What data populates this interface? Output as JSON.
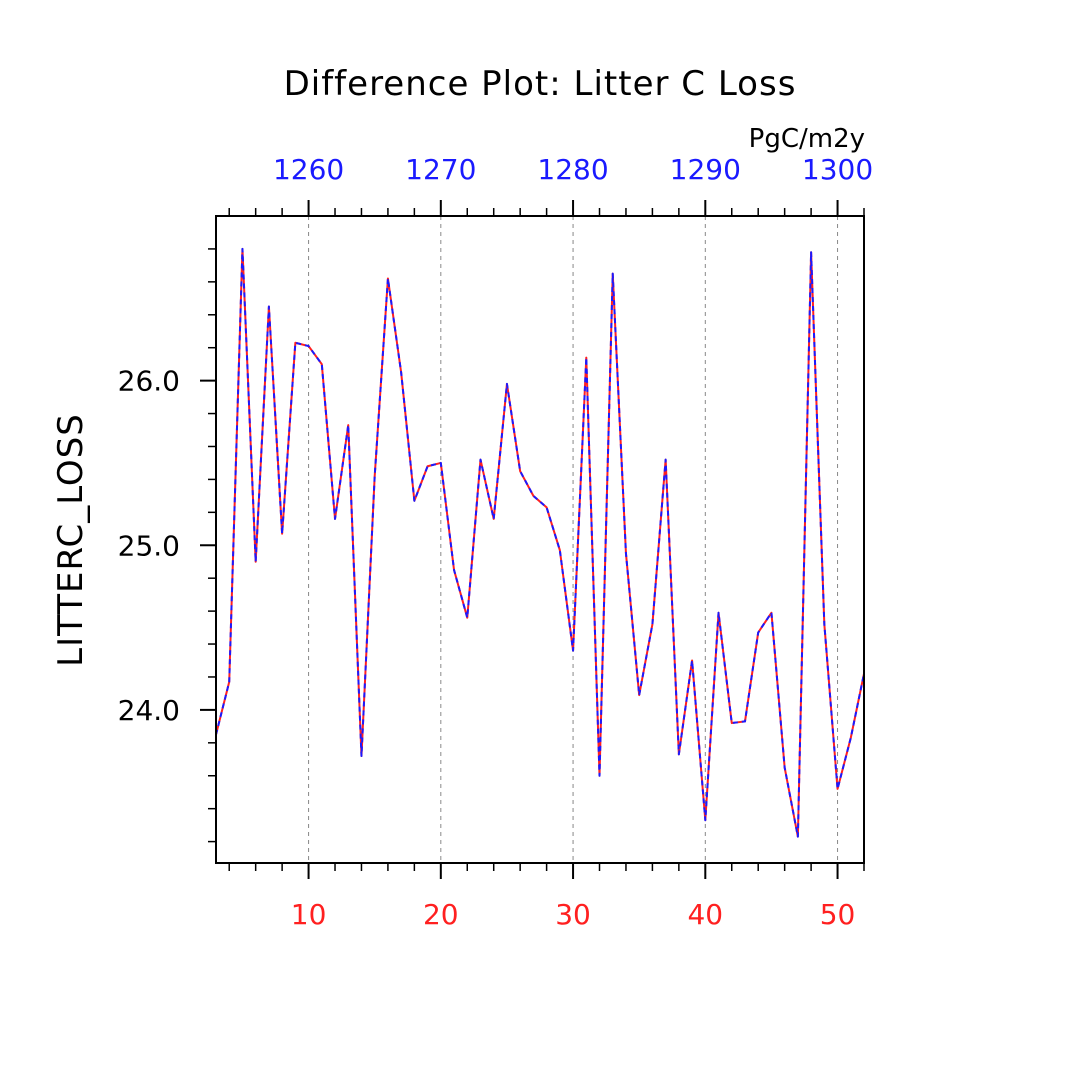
{
  "chart_data": {
    "type": "line",
    "title": "Difference Plot: Litter C Loss",
    "units": "PgC/m2y",
    "ylabel": "LITTERC_LOSS",
    "xlabel": "",
    "xlim": [
      3,
      52
    ],
    "ylim": [
      23.07,
      27.0
    ],
    "x_bottom_ticks": [
      10,
      20,
      30,
      40,
      50
    ],
    "x_top_ticks": [
      1260,
      1270,
      1280,
      1290,
      1300
    ],
    "x_top_offset": 1250,
    "y_ticks": [
      24.0,
      25.0,
      26.0
    ],
    "y_tick_labels": [
      "24.0",
      "25.0",
      "26.0"
    ],
    "grid_vertical": true,
    "colors": {
      "bottom_axis_labels": "#ff2020",
      "top_axis_labels": "#1a1aff",
      "series_a": "#ff2020",
      "series_b": "#1a1aff"
    },
    "x": [
      3,
      4,
      5,
      6,
      7,
      8,
      9,
      10,
      11,
      12,
      13,
      14,
      15,
      16,
      17,
      18,
      19,
      20,
      21,
      22,
      23,
      24,
      25,
      26,
      27,
      28,
      29,
      30,
      31,
      32,
      33,
      34,
      35,
      36,
      37,
      38,
      39,
      40,
      41,
      42,
      43,
      44,
      45,
      46,
      47,
      48,
      49,
      50,
      51,
      52
    ],
    "series": [
      {
        "values": [
          23.85,
          24.17,
          26.8,
          24.9,
          26.45,
          25.07,
          26.23,
          26.21,
          26.1,
          25.16,
          25.73,
          23.72,
          25.42,
          26.62,
          26.05,
          25.27,
          25.48,
          25.5,
          24.85,
          24.56,
          25.52,
          25.16,
          25.98,
          25.45,
          25.3,
          25.23,
          24.97,
          24.36,
          26.14,
          23.6,
          26.65,
          24.95,
          24.09,
          24.52,
          25.52,
          23.73,
          24.3,
          23.33,
          24.59,
          23.92,
          23.93,
          24.47,
          24.59,
          23.65,
          23.23,
          26.78,
          24.52,
          23.52,
          23.83,
          24.22
        ]
      },
      {
        "values": [
          23.85,
          24.17,
          26.8,
          24.9,
          26.45,
          25.07,
          26.23,
          26.21,
          26.1,
          25.16,
          25.73,
          23.72,
          25.42,
          26.62,
          26.05,
          25.27,
          25.48,
          25.5,
          24.85,
          24.56,
          25.52,
          25.16,
          25.98,
          25.45,
          25.3,
          25.23,
          24.97,
          24.36,
          26.14,
          23.6,
          26.65,
          24.95,
          24.09,
          24.52,
          25.52,
          23.73,
          24.3,
          23.33,
          24.59,
          23.92,
          23.93,
          24.47,
          24.59,
          23.65,
          23.23,
          26.78,
          24.52,
          23.52,
          23.83,
          24.22
        ]
      }
    ]
  }
}
